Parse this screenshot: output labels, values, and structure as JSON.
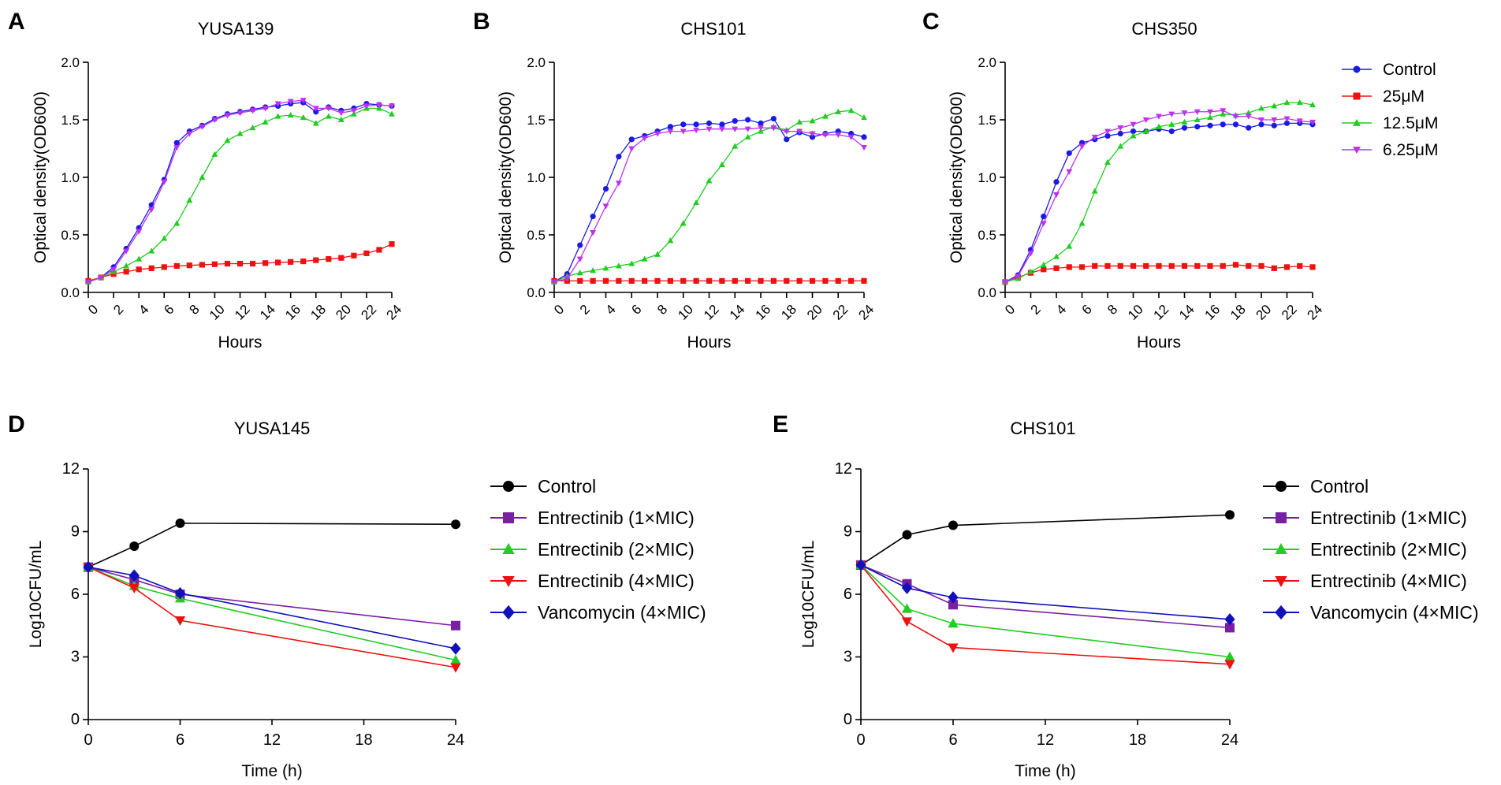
{
  "figure": {
    "name": "growth-and-time-kill-figure"
  },
  "colors": {
    "Control_growth": "#1a1ae6",
    "25uM": "#ee1111",
    "12.5uM": "#22cc22",
    "6.25uM": "#bb33ee",
    "Control_kill": "#000000",
    "Entrectinib1": "#7a1fa2",
    "Entrectinib2": "#22cc22",
    "Entrectinib4": "#ee1111",
    "Vancomycin4": "#1111bb"
  },
  "shared_growth_legend": [
    {
      "label": "Control",
      "key": "Control_growth",
      "marker": "circle"
    },
    {
      "label": "25μM",
      "key": "25uM",
      "marker": "square"
    },
    {
      "label": "12.5μM",
      "key": "12.5uM",
      "marker": "triangle-up"
    },
    {
      "label": "6.25μM",
      "key": "6.25uM",
      "marker": "triangle-down"
    }
  ],
  "chart_data": [
    {
      "panel": "A",
      "type": "line",
      "title": "YUSA139",
      "xlabel": "Hours",
      "ylabel": "Optical density(OD600)",
      "xlim": [
        0,
        24
      ],
      "ylim": [
        0,
        2.0
      ],
      "xticks": [
        0,
        2,
        4,
        6,
        8,
        10,
        12,
        14,
        16,
        18,
        20,
        22,
        24
      ],
      "yticks": [
        0.0,
        0.5,
        1.0,
        1.5,
        2.0
      ],
      "ytick_labels": [
        "0.0",
        "0.5",
        "1.0",
        "1.5",
        "2.0"
      ],
      "x": [
        0,
        1,
        2,
        3,
        4,
        5,
        6,
        7,
        8,
        9,
        10,
        11,
        12,
        13,
        14,
        15,
        16,
        17,
        18,
        19,
        20,
        21,
        22,
        23,
        24
      ],
      "series": [
        {
          "name": "Control",
          "key": "Control_growth",
          "marker": "circle",
          "values": [
            0.09,
            0.13,
            0.22,
            0.38,
            0.56,
            0.76,
            0.98,
            1.3,
            1.4,
            1.45,
            1.51,
            1.55,
            1.57,
            1.59,
            1.61,
            1.62,
            1.64,
            1.65,
            1.57,
            1.61,
            1.58,
            1.6,
            1.64,
            1.63,
            1.62
          ]
        },
        {
          "name": "25μM",
          "key": "25uM",
          "marker": "square",
          "values": [
            0.1,
            0.13,
            0.16,
            0.18,
            0.2,
            0.21,
            0.22,
            0.23,
            0.235,
            0.24,
            0.245,
            0.25,
            0.25,
            0.25,
            0.255,
            0.26,
            0.265,
            0.27,
            0.28,
            0.29,
            0.3,
            0.32,
            0.34,
            0.37,
            0.42
          ]
        },
        {
          "name": "12.5μM",
          "key": "12.5uM",
          "marker": "triangle-up",
          "values": [
            0.09,
            0.13,
            0.18,
            0.23,
            0.29,
            0.36,
            0.47,
            0.6,
            0.8,
            1.0,
            1.2,
            1.32,
            1.38,
            1.43,
            1.48,
            1.53,
            1.54,
            1.52,
            1.47,
            1.53,
            1.5,
            1.55,
            1.6,
            1.6,
            1.55
          ]
        },
        {
          "name": "6.25μM",
          "key": "6.25uM",
          "marker": "triangle-down",
          "values": [
            0.09,
            0.13,
            0.2,
            0.36,
            0.53,
            0.72,
            0.96,
            1.26,
            1.38,
            1.44,
            1.5,
            1.54,
            1.56,
            1.58,
            1.6,
            1.64,
            1.66,
            1.67,
            1.6,
            1.6,
            1.56,
            1.58,
            1.62,
            1.63,
            1.62
          ]
        }
      ]
    },
    {
      "panel": "B",
      "type": "line",
      "title": "CHS101",
      "xlabel": "Hours",
      "ylabel": "Optical density(OD600)",
      "xlim": [
        0,
        24
      ],
      "ylim": [
        0,
        2.0
      ],
      "xticks": [
        0,
        2,
        4,
        6,
        8,
        10,
        12,
        14,
        16,
        18,
        20,
        22,
        24
      ],
      "yticks": [
        0.0,
        0.5,
        1.0,
        1.5,
        2.0
      ],
      "ytick_labels": [
        "0.0",
        "0.5",
        "1.0",
        "1.5",
        "2.0"
      ],
      "x": [
        0,
        1,
        2,
        3,
        4,
        5,
        6,
        7,
        8,
        9,
        10,
        11,
        12,
        13,
        14,
        15,
        16,
        17,
        18,
        19,
        20,
        21,
        22,
        23,
        24
      ],
      "series": [
        {
          "name": "Control",
          "key": "Control_growth",
          "marker": "circle",
          "values": [
            0.09,
            0.16,
            0.41,
            0.66,
            0.9,
            1.18,
            1.33,
            1.36,
            1.4,
            1.44,
            1.46,
            1.46,
            1.47,
            1.46,
            1.49,
            1.5,
            1.47,
            1.51,
            1.33,
            1.39,
            1.35,
            1.38,
            1.4,
            1.38,
            1.35
          ]
        },
        {
          "name": "25μM",
          "key": "25uM",
          "marker": "square",
          "values": [
            0.1,
            0.1,
            0.1,
            0.1,
            0.1,
            0.1,
            0.1,
            0.1,
            0.1,
            0.1,
            0.1,
            0.1,
            0.1,
            0.1,
            0.1,
            0.1,
            0.1,
            0.1,
            0.1,
            0.1,
            0.1,
            0.1,
            0.1,
            0.1,
            0.1
          ]
        },
        {
          "name": "12.5μM",
          "key": "12.5uM",
          "marker": "triangle-up",
          "values": [
            0.09,
            0.14,
            0.17,
            0.19,
            0.21,
            0.23,
            0.25,
            0.29,
            0.33,
            0.45,
            0.6,
            0.78,
            0.97,
            1.11,
            1.27,
            1.35,
            1.4,
            1.44,
            1.41,
            1.48,
            1.49,
            1.53,
            1.57,
            1.58,
            1.52
          ]
        },
        {
          "name": "6.25μM",
          "key": "6.25uM",
          "marker": "triangle-down",
          "values": [
            0.09,
            0.12,
            0.29,
            0.52,
            0.75,
            0.95,
            1.25,
            1.34,
            1.38,
            1.4,
            1.4,
            1.41,
            1.42,
            1.42,
            1.42,
            1.42,
            1.43,
            1.43,
            1.4,
            1.4,
            1.38,
            1.37,
            1.37,
            1.35,
            1.26
          ]
        }
      ]
    },
    {
      "panel": "C",
      "type": "line",
      "title": "CHS350",
      "xlabel": "Hours",
      "ylabel": "Optical density(OD600)",
      "xlim": [
        0,
        24
      ],
      "ylim": [
        0,
        2.0
      ],
      "xticks": [
        0,
        2,
        4,
        6,
        8,
        10,
        12,
        14,
        16,
        18,
        20,
        22,
        24
      ],
      "yticks": [
        0.0,
        0.5,
        1.0,
        1.5,
        2.0
      ],
      "ytick_labels": [
        "0.0",
        "0.5",
        "1.0",
        "1.5",
        "2.0"
      ],
      "x": [
        0,
        1,
        2,
        3,
        4,
        5,
        6,
        7,
        8,
        9,
        10,
        11,
        12,
        13,
        14,
        15,
        16,
        17,
        18,
        19,
        20,
        21,
        22,
        23,
        24
      ],
      "series": [
        {
          "name": "Control",
          "key": "Control_growth",
          "marker": "circle",
          "values": [
            0.09,
            0.15,
            0.37,
            0.66,
            0.96,
            1.21,
            1.3,
            1.33,
            1.36,
            1.38,
            1.4,
            1.4,
            1.42,
            1.4,
            1.43,
            1.44,
            1.45,
            1.46,
            1.46,
            1.43,
            1.46,
            1.45,
            1.47,
            1.47,
            1.46
          ]
        },
        {
          "name": "25μM",
          "key": "25uM",
          "marker": "square",
          "values": [
            0.09,
            0.13,
            0.17,
            0.2,
            0.21,
            0.22,
            0.22,
            0.23,
            0.23,
            0.23,
            0.23,
            0.23,
            0.23,
            0.23,
            0.23,
            0.23,
            0.23,
            0.23,
            0.24,
            0.23,
            0.23,
            0.21,
            0.22,
            0.23,
            0.22
          ]
        },
        {
          "name": "12.5μM",
          "key": "12.5uM",
          "marker": "triangle-up",
          "values": [
            0.09,
            0.12,
            0.18,
            0.24,
            0.31,
            0.4,
            0.6,
            0.88,
            1.13,
            1.27,
            1.36,
            1.4,
            1.44,
            1.46,
            1.48,
            1.5,
            1.52,
            1.55,
            1.54,
            1.56,
            1.6,
            1.62,
            1.65,
            1.65,
            1.63
          ]
        },
        {
          "name": "6.25μM",
          "key": "6.25uM",
          "marker": "triangle-down",
          "values": [
            0.09,
            0.14,
            0.34,
            0.6,
            0.85,
            1.05,
            1.27,
            1.35,
            1.4,
            1.43,
            1.46,
            1.5,
            1.53,
            1.55,
            1.56,
            1.57,
            1.57,
            1.58,
            1.53,
            1.53,
            1.5,
            1.5,
            1.51,
            1.49,
            1.48
          ]
        }
      ]
    },
    {
      "panel": "D",
      "type": "line",
      "title": "YUSA145",
      "xlabel": "Time (h)",
      "ylabel": "Log10CFU/mL",
      "xlim": [
        0,
        24
      ],
      "ylim": [
        0,
        12
      ],
      "xticks": [
        0,
        6,
        12,
        18,
        24
      ],
      "yticks": [
        0,
        3,
        6,
        9,
        12
      ],
      "ytick_labels": [
        "0",
        "3",
        "6",
        "9",
        "12"
      ],
      "x": [
        0,
        3,
        6,
        24
      ],
      "legend": [
        {
          "label": "Control",
          "key": "Control_kill",
          "marker": "circle"
        },
        {
          "label": "Entrectinib (1×MIC)",
          "key": "Entrectinib1",
          "marker": "square"
        },
        {
          "label": "Entrectinib (2×MIC)",
          "key": "Entrectinib2",
          "marker": "triangle-up"
        },
        {
          "label": "Entrectinib (4×MIC)",
          "key": "Entrectinib4",
          "marker": "triangle-down"
        },
        {
          "label": "Vancomycin (4×MIC)",
          "key": "Vancomycin4",
          "marker": "diamond"
        }
      ],
      "series": [
        {
          "name": "Control",
          "key": "Control_kill",
          "marker": "circle",
          "values": [
            7.3,
            8.3,
            9.4,
            9.35
          ]
        },
        {
          "name": "Entrectinib (1×MIC)",
          "key": "Entrectinib1",
          "marker": "square",
          "values": [
            7.3,
            6.7,
            6.0,
            4.5
          ]
        },
        {
          "name": "Entrectinib (2×MIC)",
          "key": "Entrectinib2",
          "marker": "triangle-up",
          "values": [
            7.3,
            6.4,
            5.8,
            2.85
          ]
        },
        {
          "name": "Entrectinib (4×MIC)",
          "key": "Entrectinib4",
          "marker": "triangle-down",
          "values": [
            7.3,
            6.3,
            4.75,
            2.5
          ]
        },
        {
          "name": "Vancomycin (4×MIC)",
          "key": "Vancomycin4",
          "marker": "diamond",
          "values": [
            7.3,
            6.9,
            6.05,
            3.4
          ]
        }
      ]
    },
    {
      "panel": "E",
      "type": "line",
      "title": "CHS101",
      "xlabel": "Time (h)",
      "ylabel": "Log10CFU/mL",
      "xlim": [
        0,
        24
      ],
      "ylim": [
        0,
        12
      ],
      "xticks": [
        0,
        6,
        12,
        18,
        24
      ],
      "yticks": [
        0,
        3,
        6,
        9,
        12
      ],
      "ytick_labels": [
        "0",
        "3",
        "6",
        "9",
        "12"
      ],
      "x": [
        0,
        3,
        6,
        24
      ],
      "legend": [
        {
          "label": "Control",
          "key": "Control_kill",
          "marker": "circle"
        },
        {
          "label": "Entrectinib (1×MIC)",
          "key": "Entrectinib1",
          "marker": "square"
        },
        {
          "label": "Entrectinib (2×MIC)",
          "key": "Entrectinib2",
          "marker": "triangle-up"
        },
        {
          "label": "Entrectinib (4×MIC)",
          "key": "Entrectinib4",
          "marker": "triangle-down"
        },
        {
          "label": "Vancomycin (4×MIC)",
          "key": "Vancomycin4",
          "marker": "diamond"
        }
      ],
      "series": [
        {
          "name": "Control",
          "key": "Control_kill",
          "marker": "circle",
          "values": [
            7.4,
            8.85,
            9.3,
            9.8
          ]
        },
        {
          "name": "Entrectinib (1×MIC)",
          "key": "Entrectinib1",
          "marker": "square",
          "values": [
            7.4,
            6.5,
            5.5,
            4.4
          ]
        },
        {
          "name": "Entrectinib (2×MIC)",
          "key": "Entrectinib2",
          "marker": "triangle-up",
          "values": [
            7.4,
            5.3,
            4.6,
            3.0
          ]
        },
        {
          "name": "Entrectinib (4×MIC)",
          "key": "Entrectinib4",
          "marker": "triangle-down",
          "values": [
            7.4,
            4.7,
            3.45,
            2.65
          ]
        },
        {
          "name": "Vancomycin (4×MIC)",
          "key": "Vancomycin4",
          "marker": "diamond",
          "values": [
            7.4,
            6.3,
            5.85,
            4.8
          ]
        }
      ]
    }
  ]
}
